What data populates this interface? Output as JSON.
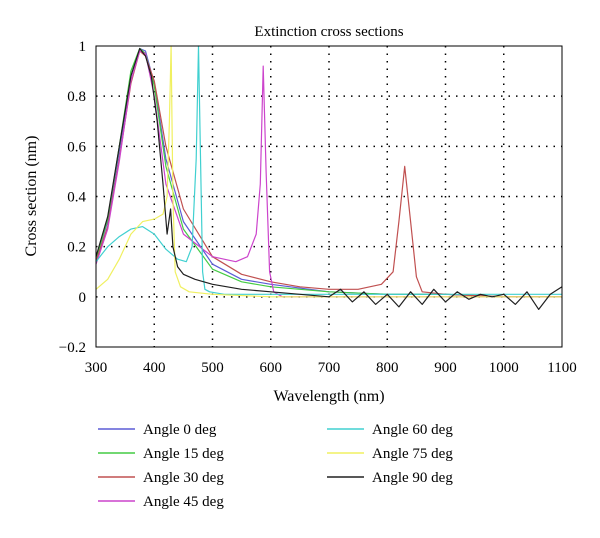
{
  "chart_data": {
    "type": "line",
    "title": "Extinction cross sections",
    "xlabel": "Wavelength (nm)",
    "ylabel": "Cross section (nm)",
    "xlim": [
      300,
      1100
    ],
    "ylim": [
      -0.2,
      1
    ],
    "xticks": [
      300,
      400,
      500,
      600,
      700,
      800,
      900,
      1000,
      1100
    ],
    "yticks": [
      -0.2,
      0,
      0.2,
      0.4,
      0.6,
      0.8,
      1
    ],
    "ytick_labels": [
      "−0.2",
      "0",
      "0.2",
      "0.4",
      "0.6",
      "0.8",
      "1"
    ],
    "grid": "dotted",
    "legend_position": "bottom",
    "series": [
      {
        "name": "Angle 0 deg",
        "color": "#5b5bd6",
        "x": [
          300,
          320,
          340,
          360,
          375,
          385,
          400,
          420,
          450,
          500,
          550,
          600,
          700,
          800,
          900,
          1000,
          1100
        ],
        "y": [
          0.15,
          0.3,
          0.58,
          0.88,
          0.99,
          0.98,
          0.85,
          0.55,
          0.3,
          0.13,
          0.07,
          0.05,
          0.02,
          0.01,
          0.01,
          0.0,
          0.0
        ]
      },
      {
        "name": "Angle 15 deg",
        "color": "#44cc44",
        "x": [
          300,
          320,
          340,
          360,
          375,
          385,
          400,
          420,
          450,
          500,
          550,
          600,
          700,
          800,
          900,
          1000,
          1100
        ],
        "y": [
          0.15,
          0.31,
          0.6,
          0.9,
          0.99,
          0.97,
          0.84,
          0.52,
          0.27,
          0.11,
          0.06,
          0.04,
          0.02,
          0.01,
          0.01,
          0.0,
          0.0
        ]
      },
      {
        "name": "Angle 30 deg",
        "color": "#c05050",
        "x": [
          300,
          320,
          340,
          360,
          375,
          385,
          400,
          420,
          450,
          500,
          550,
          600,
          650,
          700,
          750,
          790,
          810,
          820,
          830,
          840,
          850,
          860,
          900,
          1000,
          1100
        ],
        "y": [
          0.14,
          0.28,
          0.55,
          0.85,
          0.98,
          0.96,
          0.86,
          0.6,
          0.35,
          0.16,
          0.09,
          0.06,
          0.04,
          0.03,
          0.03,
          0.05,
          0.1,
          0.3,
          0.52,
          0.3,
          0.08,
          0.02,
          0.01,
          0.0,
          0.0
        ]
      },
      {
        "name": "Angle 45 deg",
        "color": "#cc44cc",
        "x": [
          300,
          320,
          340,
          360,
          375,
          385,
          400,
          420,
          450,
          500,
          540,
          560,
          575,
          582,
          587,
          592,
          598,
          605,
          620,
          700,
          800,
          900,
          1000,
          1100
        ],
        "y": [
          0.13,
          0.27,
          0.54,
          0.86,
          0.98,
          0.97,
          0.8,
          0.45,
          0.25,
          0.16,
          0.14,
          0.16,
          0.25,
          0.45,
          0.92,
          0.5,
          0.1,
          0.02,
          0.0,
          0.0,
          0.0,
          0.0,
          0.0,
          0.0
        ]
      },
      {
        "name": "Angle 60 deg",
        "color": "#40d0d0",
        "x": [
          300,
          320,
          340,
          360,
          380,
          400,
          420,
          440,
          455,
          465,
          472,
          476,
          479,
          483,
          487,
          495,
          520,
          600,
          700,
          800,
          900,
          1000,
          1100
        ],
        "y": [
          0.14,
          0.2,
          0.24,
          0.27,
          0.28,
          0.25,
          0.19,
          0.15,
          0.14,
          0.2,
          0.55,
          1.0,
          0.6,
          0.1,
          0.03,
          0.02,
          0.01,
          0.01,
          0.01,
          0.01,
          0.01,
          0.01,
          0.01
        ]
      },
      {
        "name": "Angle 75 deg",
        "color": "#f0f060",
        "x": [
          300,
          320,
          340,
          360,
          380,
          400,
          415,
          422,
          426,
          429,
          432,
          436,
          445,
          460,
          500,
          600,
          700,
          800,
          900,
          1000,
          1100
        ],
        "y": [
          0.03,
          0.07,
          0.15,
          0.25,
          0.3,
          0.31,
          0.33,
          0.4,
          0.7,
          1.0,
          0.4,
          0.1,
          0.04,
          0.02,
          0.01,
          0.0,
          0.0,
          0.0,
          0.0,
          0.0,
          0.0
        ]
      },
      {
        "name": "Angle 90 deg",
        "color": "#202020",
        "x": [
          300,
          320,
          340,
          360,
          375,
          385,
          395,
          405,
          415,
          422,
          428,
          432,
          440,
          450,
          470,
          500,
          550,
          600,
          650,
          700,
          720,
          740,
          760,
          780,
          800,
          820,
          840,
          860,
          880,
          900,
          920,
          940,
          960,
          980,
          1000,
          1020,
          1040,
          1060,
          1080,
          1100
        ],
        "y": [
          0.16,
          0.32,
          0.6,
          0.88,
          0.99,
          0.96,
          0.88,
          0.7,
          0.45,
          0.25,
          0.35,
          0.2,
          0.12,
          0.09,
          0.07,
          0.05,
          0.03,
          0.02,
          0.01,
          0.0,
          0.03,
          -0.02,
          0.02,
          -0.03,
          0.01,
          -0.04,
          0.02,
          -0.03,
          0.03,
          -0.02,
          0.02,
          -0.01,
          0.01,
          0.0,
          0.01,
          -0.03,
          0.02,
          -0.05,
          0.01,
          0.04
        ]
      }
    ]
  }
}
